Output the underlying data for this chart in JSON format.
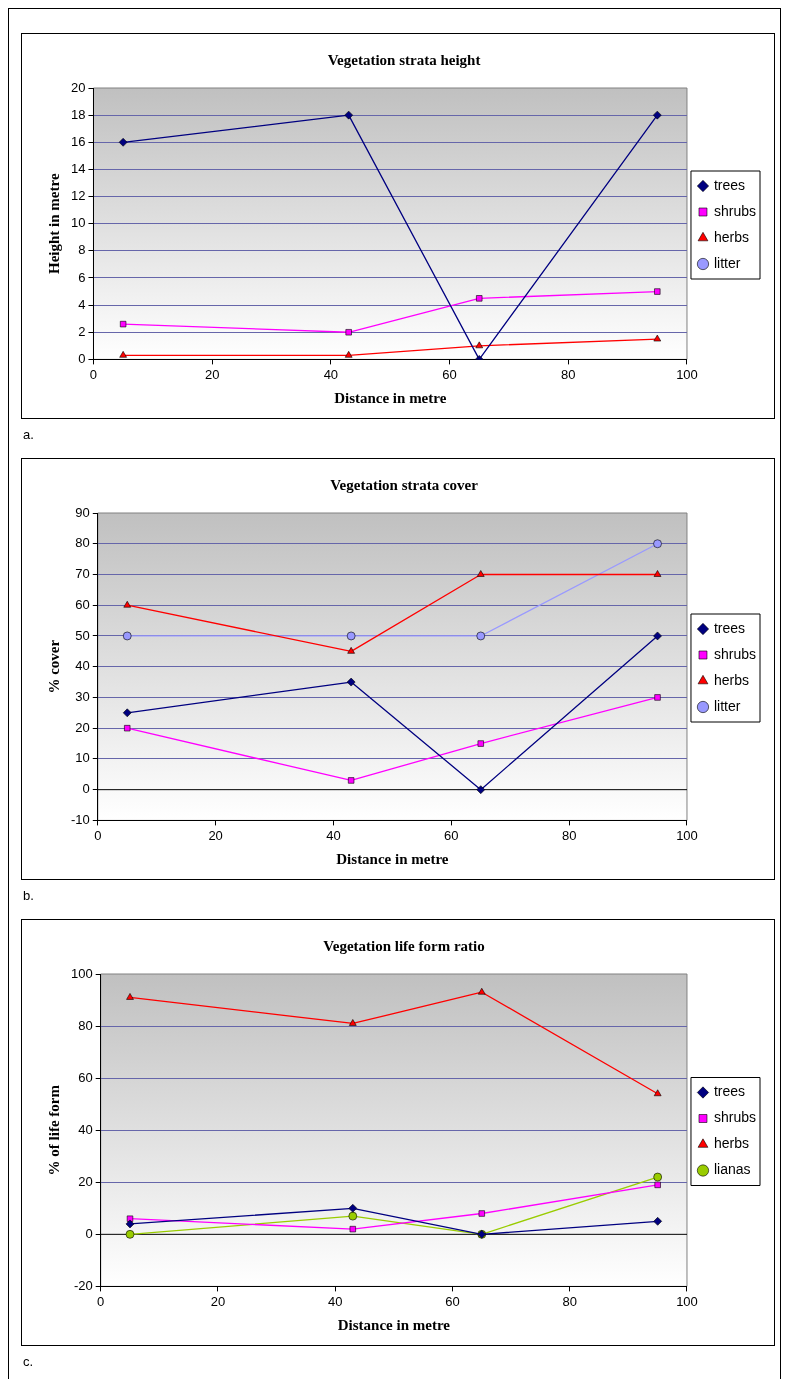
{
  "chart_data": [
    {
      "type": "line",
      "title": "Vegetation strata height",
      "xlabel": "Distance in metre",
      "ylabel": "Height in metre",
      "x": [
        5,
        43,
        65,
        95
      ],
      "series": [
        {
          "name": "trees",
          "color": "#000080",
          "marker": "diamond",
          "values": [
            16,
            18,
            0,
            18
          ]
        },
        {
          "name": "shrubs",
          "color": "#ff00ff",
          "marker": "square",
          "values": [
            2.6,
            2,
            4.5,
            5
          ]
        },
        {
          "name": "herbs",
          "color": "#ff0000",
          "marker": "triangle",
          "values": [
            0.3,
            0.3,
            1,
            1.5
          ]
        },
        {
          "name": "litter",
          "color": "#9999ff",
          "marker": "circle",
          "values": [
            null,
            null,
            null,
            null
          ]
        }
      ],
      "xlim": [
        0,
        100
      ],
      "xticks": [
        0,
        20,
        40,
        60,
        80,
        100
      ],
      "ylim": [
        0,
        20
      ],
      "yticks": [
        0,
        2,
        4,
        6,
        8,
        10,
        12,
        14,
        16,
        18,
        20
      ],
      "grid": "y",
      "legend": "right",
      "annotations": [
        "a."
      ]
    },
    {
      "type": "line",
      "title": "Vegetation strata cover",
      "xlabel": "Distance in metre",
      "ylabel": "% cover",
      "x": [
        5,
        43,
        65,
        95
      ],
      "series": [
        {
          "name": "trees",
          "color": "#000080",
          "marker": "diamond",
          "values": [
            25,
            35,
            0,
            50
          ]
        },
        {
          "name": "shrubs",
          "color": "#ff00ff",
          "marker": "square",
          "values": [
            20,
            3,
            15,
            30
          ]
        },
        {
          "name": "herbs",
          "color": "#ff0000",
          "marker": "triangle",
          "values": [
            60,
            45,
            70,
            70
          ]
        },
        {
          "name": "litter",
          "color": "#9999ff",
          "marker": "circle",
          "values": [
            50,
            50,
            50,
            80
          ]
        }
      ],
      "xlim": [
        0,
        100
      ],
      "xticks": [
        0,
        20,
        40,
        60,
        80,
        100
      ],
      "ylim": [
        -10,
        90
      ],
      "yticks": [
        -10,
        0,
        10,
        20,
        30,
        40,
        50,
        60,
        70,
        80,
        90
      ],
      "grid": "y",
      "legend": "right",
      "annotations": [
        "b."
      ]
    },
    {
      "type": "line",
      "title": "Vegetation life form ratio",
      "xlabel": "Distance in metre",
      "ylabel": "% of life form",
      "x": [
        5,
        43,
        65,
        95
      ],
      "series": [
        {
          "name": "trees",
          "color": "#000080",
          "marker": "diamond",
          "values": [
            4,
            10,
            0,
            5
          ]
        },
        {
          "name": "shrubs",
          "color": "#ff00ff",
          "marker": "square",
          "values": [
            6,
            2,
            8,
            19
          ]
        },
        {
          "name": "herbs",
          "color": "#ff0000",
          "marker": "triangle",
          "values": [
            91,
            81,
            93,
            54
          ]
        },
        {
          "name": "lianas",
          "color": "#99cc00",
          "marker": "circle",
          "values": [
            0,
            7,
            0,
            22
          ]
        }
      ],
      "xlim": [
        0,
        100
      ],
      "xticks": [
        0,
        20,
        40,
        60,
        80,
        100
      ],
      "ylim": [
        -20,
        100
      ],
      "yticks": [
        -20,
        0,
        20,
        40,
        60,
        80,
        100
      ],
      "grid": "y",
      "legend": "right",
      "annotations": [
        "c."
      ]
    }
  ]
}
